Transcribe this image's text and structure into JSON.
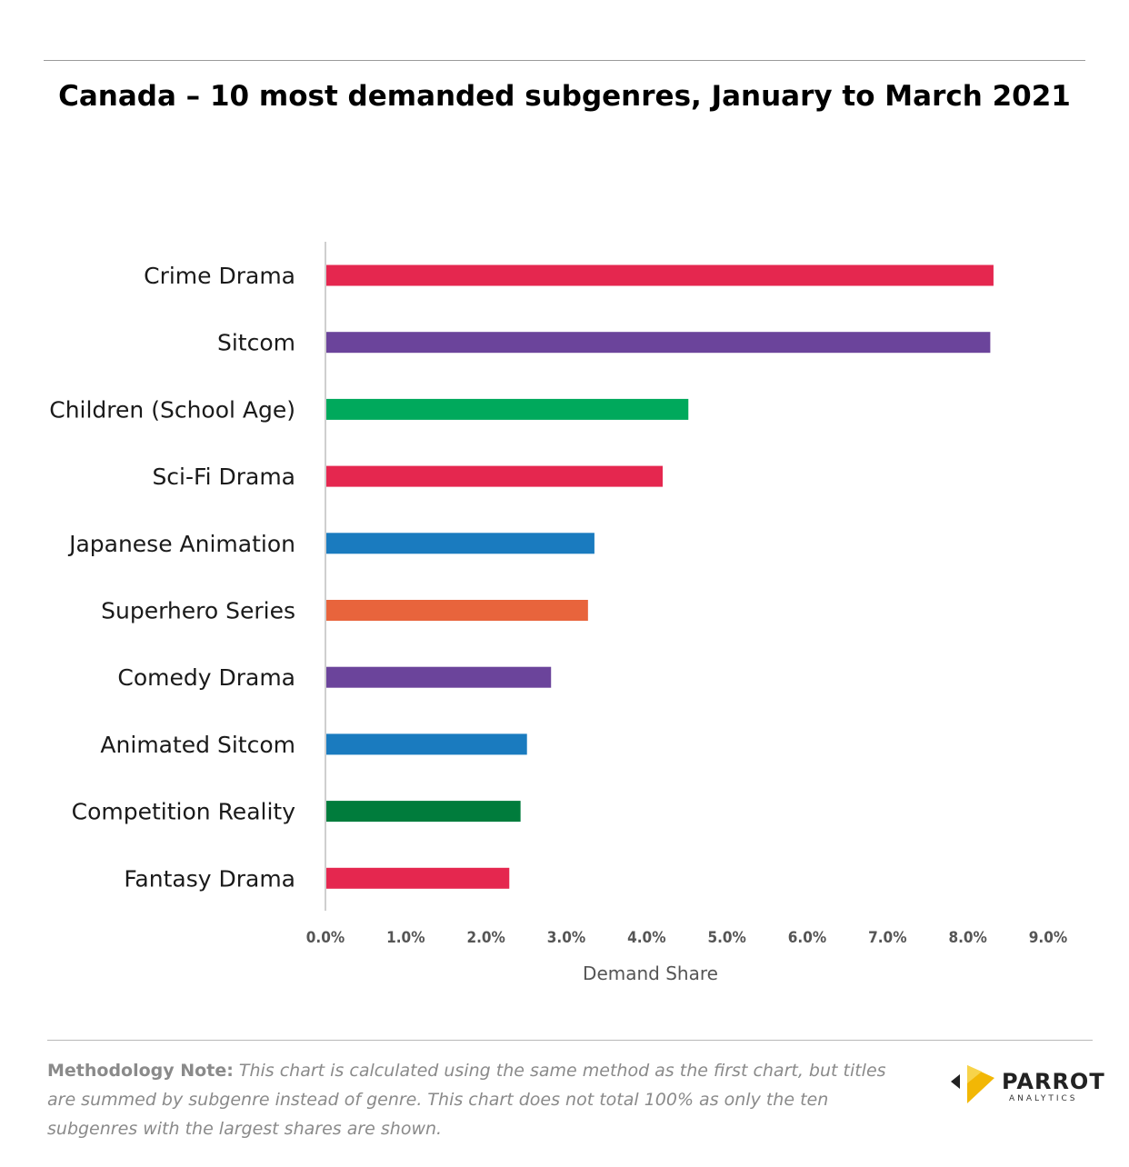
{
  "title": "Canada – 10 most demanded subgenres, January to March 2021",
  "chart_data": {
    "type": "bar",
    "orientation": "horizontal",
    "categories": [
      "Crime Drama",
      "Sitcom",
      "Children (School Age)",
      "Sci-Fi Drama",
      "Japanese Animation",
      "Superhero Series",
      "Comedy Drama",
      "Animated Sitcom",
      "Competition Reality",
      "Fantasy Drama"
    ],
    "values": [
      8.32,
      8.28,
      4.52,
      4.2,
      3.35,
      3.27,
      2.81,
      2.51,
      2.43,
      2.29
    ],
    "colors": [
      "#e5274f",
      "#6b449b",
      "#00a95c",
      "#e5274f",
      "#1a7bbf",
      "#e8643c",
      "#6b449b",
      "#1a7bbf",
      "#007c3c",
      "#e5274f"
    ],
    "xlabel": "Demand Share",
    "ylabel": "",
    "xlim": [
      0,
      9
    ],
    "x_ticks": [
      "0.0%",
      "1.0%",
      "2.0%",
      "3.0%",
      "4.0%",
      "5.0%",
      "6.0%",
      "7.0%",
      "8.0%",
      "9.0%"
    ],
    "grid": false,
    "legend": "none"
  },
  "note": {
    "lead": "Methodology Note:",
    "body": "This chart is calculated using the same method as the first chart, but titles are summed by subgenre instead of genre. This chart does not total 100% as only the ten subgenres with the largest shares are shown."
  },
  "logo": {
    "name": "PARROT",
    "sub": "ANALYTICS",
    "icon": "parrot-logo-icon",
    "colors": [
      "#f2b705",
      "#f7d34a"
    ]
  }
}
